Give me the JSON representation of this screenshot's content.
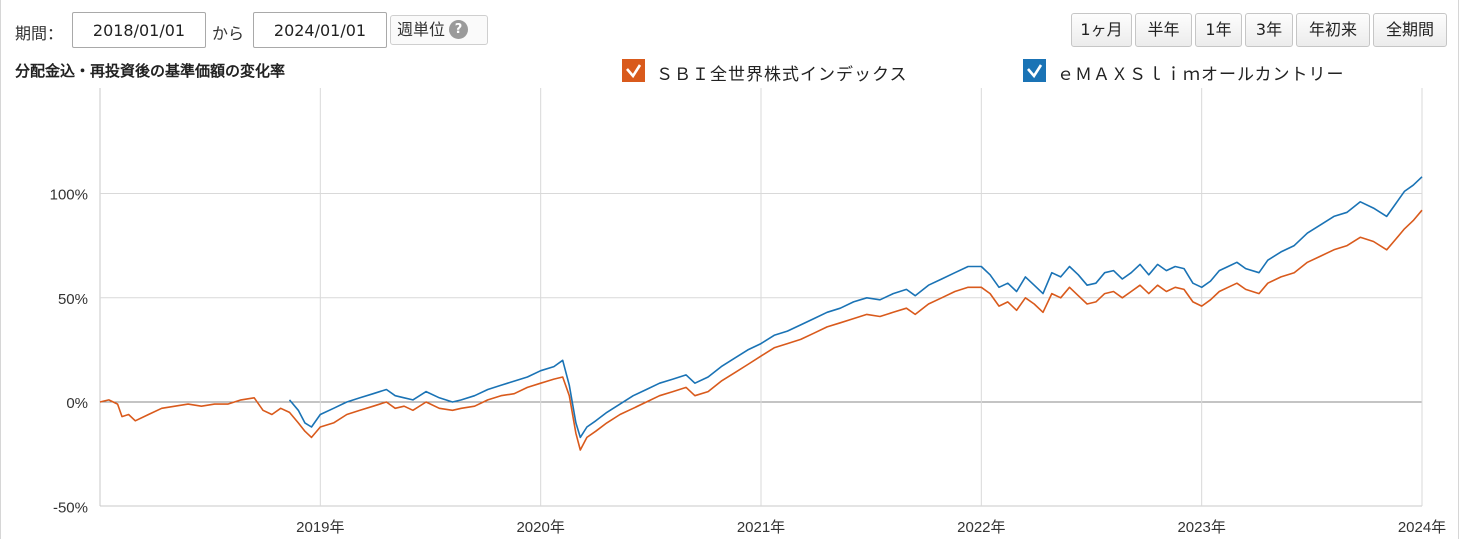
{
  "toolbar": {
    "period_label": "期間：",
    "start_date": "2018/01/01",
    "from_label": "から",
    "end_date": "2024/01/01",
    "weekly_label": "週単位",
    "help_glyph": "?",
    "range_buttons": [
      "1ヶ月",
      "半年",
      "1年",
      "3年",
      "年初来",
      "全期間"
    ]
  },
  "chart_title": "分配金込・再投資後の基準価額の変化率",
  "legend": [
    {
      "label": "ＳＢＩ全世界株式インデックス",
      "color": "#d95a1c",
      "checked": true
    },
    {
      "label": "ｅＭＡＸＳｌｉｍオールカントリー",
      "color": "#1a73b5",
      "checked": true
    }
  ],
  "chart_data": {
    "type": "line",
    "title": "分配金込・再投資後の基準価額の変化率",
    "x_ticks": [
      "2019年",
      "2020年",
      "2021年",
      "2022年",
      "2023年",
      "2024年"
    ],
    "y_ticks": [
      "100%",
      "50%",
      "0%",
      "-50%"
    ],
    "ylim": [
      -50,
      140
    ],
    "xlim": [
      2018.0,
      2024.0
    ],
    "grid": true,
    "legend_position": "top",
    "series": [
      {
        "name": "ＳＢＩ全世界株式インデックス",
        "color": "#d95a1c",
        "points": [
          [
            2018.0,
            0
          ],
          [
            2018.04,
            1
          ],
          [
            2018.08,
            -1
          ],
          [
            2018.1,
            -7
          ],
          [
            2018.13,
            -6
          ],
          [
            2018.16,
            -9
          ],
          [
            2018.22,
            -6
          ],
          [
            2018.28,
            -3
          ],
          [
            2018.34,
            -2
          ],
          [
            2018.4,
            -1
          ],
          [
            2018.46,
            -2
          ],
          [
            2018.52,
            -1
          ],
          [
            2018.58,
            -1
          ],
          [
            2018.64,
            1
          ],
          [
            2018.7,
            2
          ],
          [
            2018.74,
            -4
          ],
          [
            2018.78,
            -6
          ],
          [
            2018.82,
            -3
          ],
          [
            2018.86,
            -5
          ],
          [
            2018.9,
            -10
          ],
          [
            2018.93,
            -14
          ],
          [
            2018.96,
            -17
          ],
          [
            2019.0,
            -12
          ],
          [
            2019.06,
            -10
          ],
          [
            2019.12,
            -6
          ],
          [
            2019.18,
            -4
          ],
          [
            2019.24,
            -2
          ],
          [
            2019.3,
            0
          ],
          [
            2019.34,
            -3
          ],
          [
            2019.38,
            -2
          ],
          [
            2019.42,
            -4
          ],
          [
            2019.48,
            0
          ],
          [
            2019.54,
            -3
          ],
          [
            2019.6,
            -4
          ],
          [
            2019.64,
            -3
          ],
          [
            2019.7,
            -2
          ],
          [
            2019.76,
            1
          ],
          [
            2019.82,
            3
          ],
          [
            2019.88,
            4
          ],
          [
            2019.94,
            7
          ],
          [
            2020.0,
            9
          ],
          [
            2020.06,
            11
          ],
          [
            2020.1,
            12
          ],
          [
            2020.13,
            3
          ],
          [
            2020.16,
            -15
          ],
          [
            2020.18,
            -23
          ],
          [
            2020.21,
            -17
          ],
          [
            2020.25,
            -14
          ],
          [
            2020.3,
            -10
          ],
          [
            2020.36,
            -6
          ],
          [
            2020.42,
            -3
          ],
          [
            2020.48,
            0
          ],
          [
            2020.54,
            3
          ],
          [
            2020.6,
            5
          ],
          [
            2020.66,
            7
          ],
          [
            2020.7,
            3
          ],
          [
            2020.76,
            5
          ],
          [
            2020.82,
            10
          ],
          [
            2020.88,
            14
          ],
          [
            2020.94,
            18
          ],
          [
            2021.0,
            22
          ],
          [
            2021.06,
            26
          ],
          [
            2021.12,
            28
          ],
          [
            2021.18,
            30
          ],
          [
            2021.24,
            33
          ],
          [
            2021.3,
            36
          ],
          [
            2021.36,
            38
          ],
          [
            2021.42,
            40
          ],
          [
            2021.48,
            42
          ],
          [
            2021.54,
            41
          ],
          [
            2021.6,
            43
          ],
          [
            2021.66,
            45
          ],
          [
            2021.7,
            42
          ],
          [
            2021.76,
            47
          ],
          [
            2021.82,
            50
          ],
          [
            2021.88,
            53
          ],
          [
            2021.94,
            55
          ],
          [
            2022.0,
            55
          ],
          [
            2022.04,
            52
          ],
          [
            2022.08,
            46
          ],
          [
            2022.12,
            48
          ],
          [
            2022.16,
            44
          ],
          [
            2022.2,
            50
          ],
          [
            2022.24,
            47
          ],
          [
            2022.28,
            43
          ],
          [
            2022.32,
            52
          ],
          [
            2022.36,
            50
          ],
          [
            2022.4,
            55
          ],
          [
            2022.44,
            51
          ],
          [
            2022.48,
            47
          ],
          [
            2022.52,
            48
          ],
          [
            2022.56,
            52
          ],
          [
            2022.6,
            53
          ],
          [
            2022.64,
            50
          ],
          [
            2022.68,
            53
          ],
          [
            2022.72,
            56
          ],
          [
            2022.76,
            52
          ],
          [
            2022.8,
            56
          ],
          [
            2022.84,
            53
          ],
          [
            2022.88,
            55
          ],
          [
            2022.92,
            54
          ],
          [
            2022.96,
            48
          ],
          [
            2023.0,
            46
          ],
          [
            2023.04,
            49
          ],
          [
            2023.08,
            53
          ],
          [
            2023.12,
            55
          ],
          [
            2023.16,
            57
          ],
          [
            2023.2,
            54
          ],
          [
            2023.26,
            52
          ],
          [
            2023.3,
            57
          ],
          [
            2023.36,
            60
          ],
          [
            2023.42,
            62
          ],
          [
            2023.48,
            67
          ],
          [
            2023.54,
            70
          ],
          [
            2023.6,
            73
          ],
          [
            2023.66,
            75
          ],
          [
            2023.72,
            79
          ],
          [
            2023.78,
            77
          ],
          [
            2023.84,
            73
          ],
          [
            2023.88,
            78
          ],
          [
            2023.92,
            83
          ],
          [
            2023.96,
            87
          ],
          [
            2024.0,
            92
          ]
        ]
      },
      {
        "name": "ｅＭＡＸＳｌｉｍオールカントリー",
        "color": "#1a73b5",
        "points": [
          [
            2018.86,
            1
          ],
          [
            2018.9,
            -4
          ],
          [
            2018.93,
            -10
          ],
          [
            2018.96,
            -12
          ],
          [
            2019.0,
            -6
          ],
          [
            2019.06,
            -3
          ],
          [
            2019.12,
            0
          ],
          [
            2019.18,
            2
          ],
          [
            2019.24,
            4
          ],
          [
            2019.3,
            6
          ],
          [
            2019.34,
            3
          ],
          [
            2019.38,
            2
          ],
          [
            2019.42,
            1
          ],
          [
            2019.48,
            5
          ],
          [
            2019.54,
            2
          ],
          [
            2019.6,
            0
          ],
          [
            2019.64,
            1
          ],
          [
            2019.7,
            3
          ],
          [
            2019.76,
            6
          ],
          [
            2019.82,
            8
          ],
          [
            2019.88,
            10
          ],
          [
            2019.94,
            12
          ],
          [
            2020.0,
            15
          ],
          [
            2020.06,
            17
          ],
          [
            2020.1,
            20
          ],
          [
            2020.13,
            8
          ],
          [
            2020.16,
            -10
          ],
          [
            2020.18,
            -17
          ],
          [
            2020.21,
            -12
          ],
          [
            2020.25,
            -9
          ],
          [
            2020.3,
            -5
          ],
          [
            2020.36,
            -1
          ],
          [
            2020.42,
            3
          ],
          [
            2020.48,
            6
          ],
          [
            2020.54,
            9
          ],
          [
            2020.6,
            11
          ],
          [
            2020.66,
            13
          ],
          [
            2020.7,
            9
          ],
          [
            2020.76,
            12
          ],
          [
            2020.82,
            17
          ],
          [
            2020.88,
            21
          ],
          [
            2020.94,
            25
          ],
          [
            2021.0,
            28
          ],
          [
            2021.06,
            32
          ],
          [
            2021.12,
            34
          ],
          [
            2021.18,
            37
          ],
          [
            2021.24,
            40
          ],
          [
            2021.3,
            43
          ],
          [
            2021.36,
            45
          ],
          [
            2021.42,
            48
          ],
          [
            2021.48,
            50
          ],
          [
            2021.54,
            49
          ],
          [
            2021.6,
            52
          ],
          [
            2021.66,
            54
          ],
          [
            2021.7,
            51
          ],
          [
            2021.76,
            56
          ],
          [
            2021.82,
            59
          ],
          [
            2021.88,
            62
          ],
          [
            2021.94,
            65
          ],
          [
            2022.0,
            65
          ],
          [
            2022.04,
            61
          ],
          [
            2022.08,
            55
          ],
          [
            2022.12,
            57
          ],
          [
            2022.16,
            53
          ],
          [
            2022.2,
            60
          ],
          [
            2022.24,
            56
          ],
          [
            2022.28,
            52
          ],
          [
            2022.32,
            62
          ],
          [
            2022.36,
            60
          ],
          [
            2022.4,
            65
          ],
          [
            2022.44,
            61
          ],
          [
            2022.48,
            56
          ],
          [
            2022.52,
            57
          ],
          [
            2022.56,
            62
          ],
          [
            2022.6,
            63
          ],
          [
            2022.64,
            59
          ],
          [
            2022.68,
            62
          ],
          [
            2022.72,
            66
          ],
          [
            2022.76,
            61
          ],
          [
            2022.8,
            66
          ],
          [
            2022.84,
            63
          ],
          [
            2022.88,
            65
          ],
          [
            2022.92,
            64
          ],
          [
            2022.96,
            57
          ],
          [
            2023.0,
            55
          ],
          [
            2023.04,
            58
          ],
          [
            2023.08,
            63
          ],
          [
            2023.12,
            65
          ],
          [
            2023.16,
            67
          ],
          [
            2023.2,
            64
          ],
          [
            2023.26,
            62
          ],
          [
            2023.3,
            68
          ],
          [
            2023.36,
            72
          ],
          [
            2023.42,
            75
          ],
          [
            2023.48,
            81
          ],
          [
            2023.54,
            85
          ],
          [
            2023.6,
            89
          ],
          [
            2023.66,
            91
          ],
          [
            2023.72,
            96
          ],
          [
            2023.78,
            93
          ],
          [
            2023.84,
            89
          ],
          [
            2023.88,
            95
          ],
          [
            2023.92,
            101
          ],
          [
            2023.96,
            104
          ],
          [
            2024.0,
            108
          ]
        ]
      }
    ]
  }
}
